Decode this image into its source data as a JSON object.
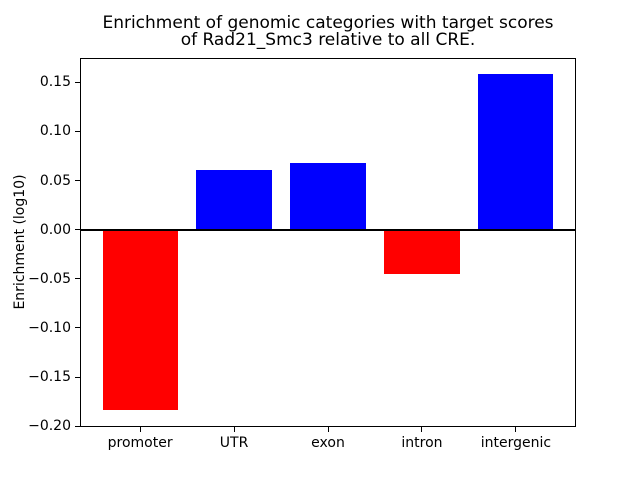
{
  "title": {
    "line1": "Enrichment of genomic categories with target scores",
    "line2": "of Rad21_Smc3 relative to all CRE."
  },
  "colors": {
    "positive_bar": "#0000ff",
    "negative_bar": "#ff0000",
    "axis": "#000000",
    "background": "#ffffff"
  },
  "chart_data": {
    "type": "bar",
    "title": "Enrichment of genomic categories with target scores\nof Rad21_Smc3 relative to all CRE.",
    "categories": [
      "promoter",
      "UTR",
      "exon",
      "intron",
      "intergenic"
    ],
    "values": [
      -0.184,
      0.061,
      0.068,
      -0.045,
      0.158
    ],
    "bar_colors": [
      "#ff0000",
      "#0000ff",
      "#0000ff",
      "#ff0000",
      "#0000ff"
    ],
    "xlabel": "",
    "ylabel": "Enrichment (log10)",
    "ylim": [
      -0.2008,
      0.1747
    ],
    "yticks": [
      0.15,
      0.1,
      0.05,
      0.0,
      -0.05,
      -0.1,
      -0.15,
      -0.2
    ],
    "ytick_labels": [
      "0.15",
      "0.10",
      "0.05",
      "0.00",
      "−0.05",
      "−0.10",
      "−0.15",
      "−0.20"
    ],
    "bar_width_fraction": 0.8,
    "x_margin": 0.64,
    "zero_line": true,
    "grid": false,
    "legend": false
  }
}
